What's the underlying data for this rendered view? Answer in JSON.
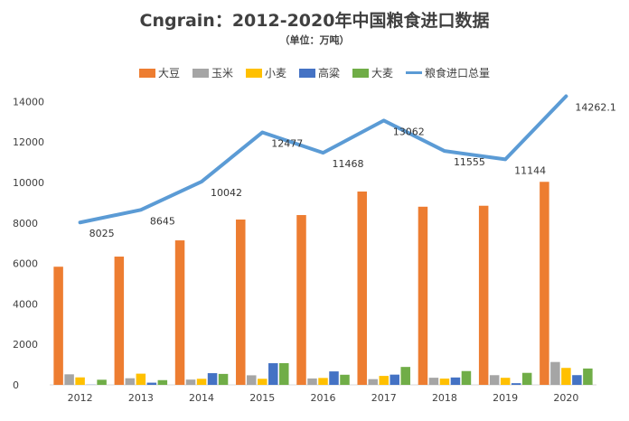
{
  "chart_data": {
    "type": "bar",
    "title": "Cngrain：2012-2020年中国粮食进口数据",
    "subtitle": "（单位：万吨）",
    "categories": [
      "2012",
      "2013",
      "2014",
      "2015",
      "2016",
      "2017",
      "2018",
      "2019",
      "2020"
    ],
    "ylim": [
      0,
      15000
    ],
    "yticks": [
      0,
      2000,
      4000,
      6000,
      8000,
      10000,
      12000,
      14000
    ],
    "series": [
      {
        "name": "大豆",
        "kind": "bar",
        "color": "#ED7D31",
        "values": [
          5838,
          6338,
          7140,
          8169,
          8391,
          9553,
          8803,
          8851,
          10033
        ]
      },
      {
        "name": "玉米",
        "kind": "bar",
        "color": "#A5A5A5",
        "values": [
          521,
          327,
          260,
          473,
          317,
          283,
          352,
          479,
          1130
        ]
      },
      {
        "name": "小麦",
        "kind": "bar",
        "color": "#FFC000",
        "values": [
          370,
          553,
          300,
          300,
          341,
          442,
          310,
          349,
          838
        ]
      },
      {
        "name": "高粱",
        "kind": "bar",
        "color": "#4472C4",
        "values": [
          9,
          108,
          578,
          1070,
          665,
          506,
          365,
          83,
          481
        ]
      },
      {
        "name": "大麦",
        "kind": "bar",
        "color": "#70AD47",
        "values": [
          253,
          234,
          541,
          1073,
          500,
          886,
          682,
          593,
          808
        ]
      },
      {
        "name": "粮食进口总量",
        "kind": "line",
        "color": "#5B9BD5",
        "values": [
          8025,
          8645,
          10042,
          12477,
          11468,
          13062,
          11555,
          11144,
          14262.1
        ],
        "labels": [
          "8025",
          "8645",
          "10042",
          "12477",
          "11468",
          "13062",
          "11555",
          "11144",
          "14262.1"
        ]
      }
    ]
  }
}
